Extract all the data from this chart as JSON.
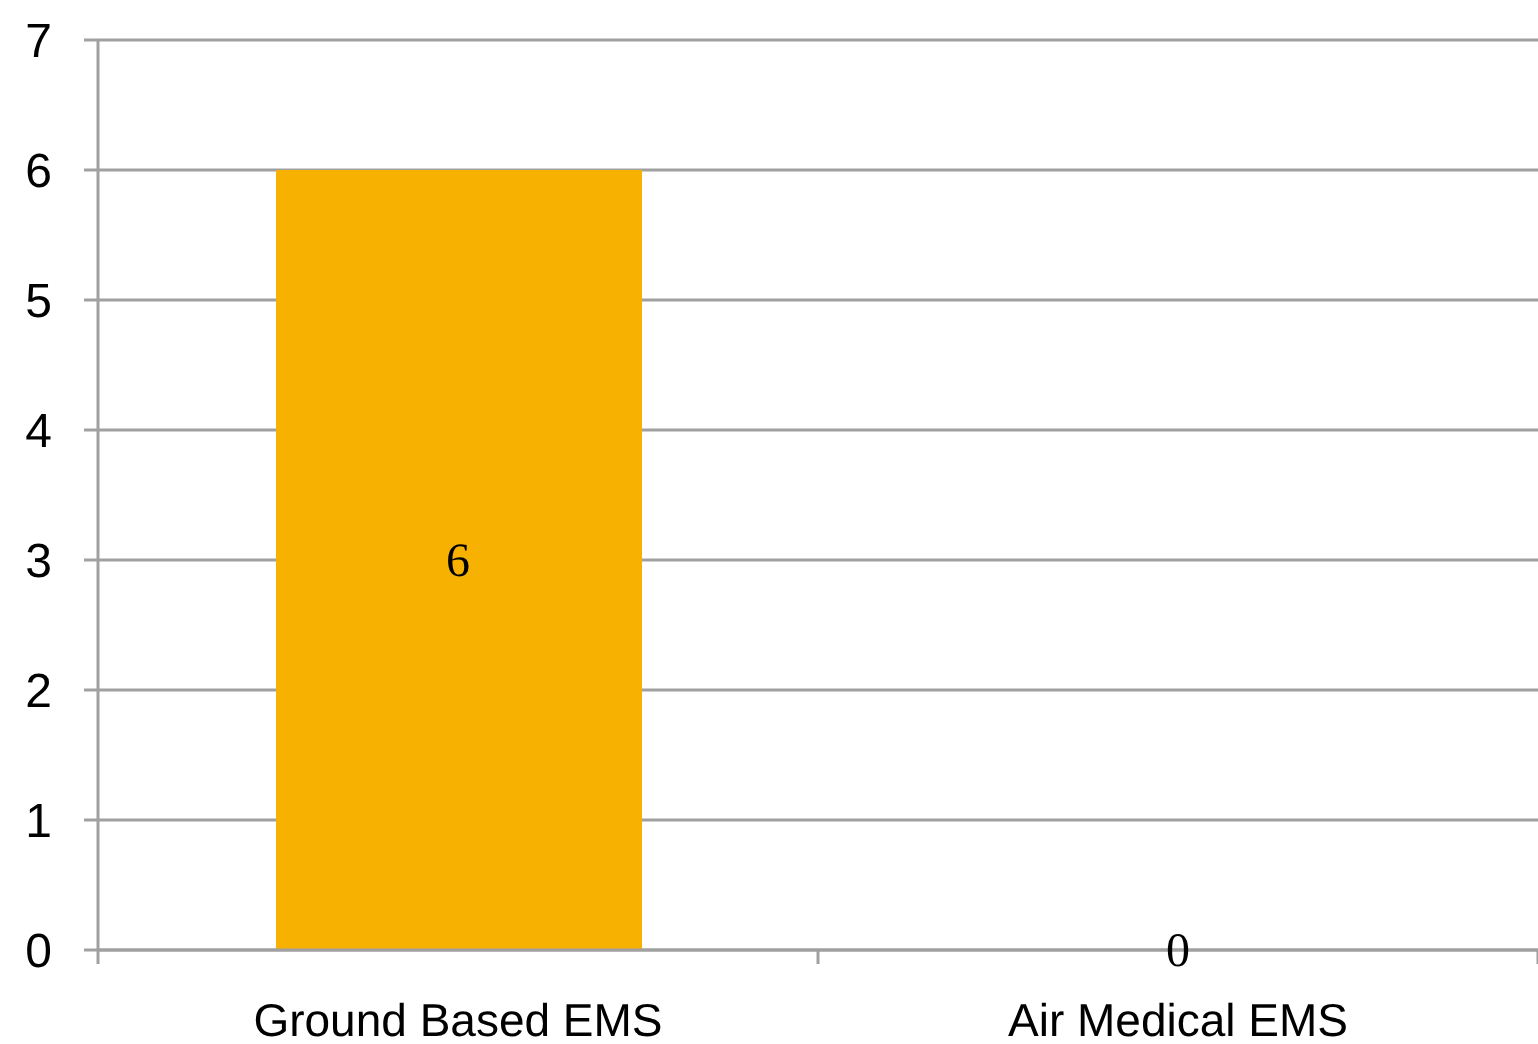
{
  "chart_data": {
    "type": "bar",
    "categories": [
      "Ground Based EMS",
      "Air Medical EMS"
    ],
    "values": [
      6,
      0
    ],
    "color": "#f7b100",
    "ylim": [
      0,
      7
    ],
    "yticks": [
      0,
      1,
      2,
      3,
      4,
      5,
      6,
      7
    ],
    "grid": "y",
    "data_labels": true
  }
}
